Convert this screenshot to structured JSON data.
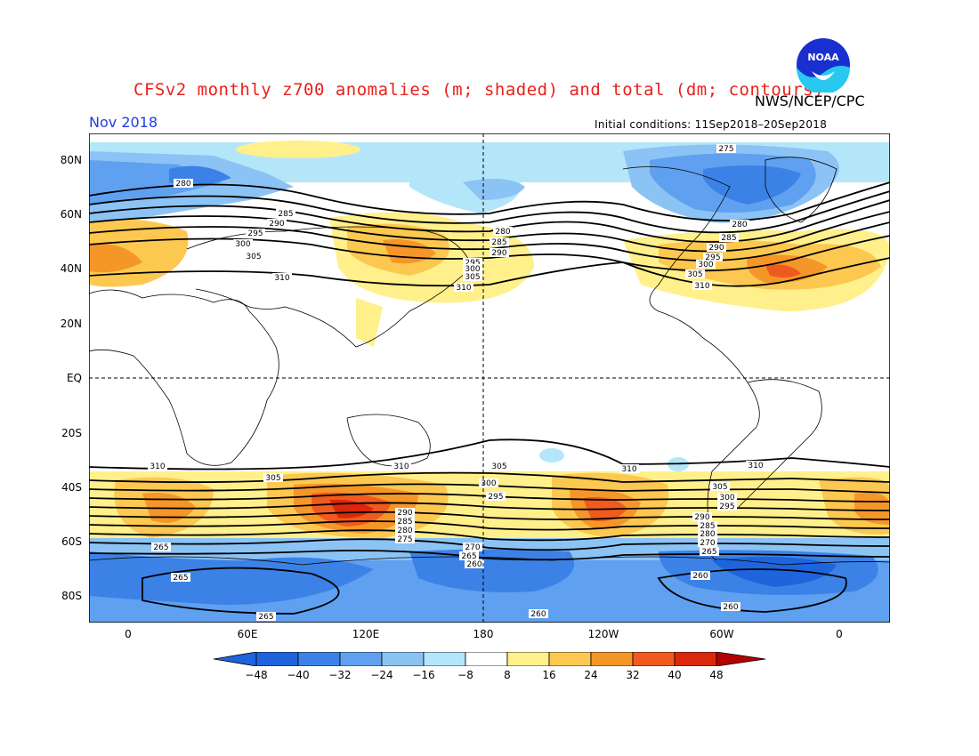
{
  "title": "CFSv2 monthly z700 anomalies (m; shaded) and total (dm; contours)",
  "agency": "NWS/NCEP/CPC",
  "logo_text": "NOAA",
  "month": "Nov 2018",
  "initial_conditions": "Initial conditions: 11Sep2018–20Sep2018",
  "lat_labels": [
    "80N",
    "60N",
    "40N",
    "20N",
    "EQ",
    "20S",
    "40S",
    "60S",
    "80S"
  ],
  "lon_labels": [
    "0",
    "60E",
    "120E",
    "180",
    "120W",
    "60W",
    "0"
  ],
  "colorbar": {
    "labels": [
      "−48",
      "−40",
      "−32",
      "−24",
      "−16",
      "−8",
      "8",
      "16",
      "24",
      "32",
      "40",
      "48"
    ],
    "colors": [
      "#1e64dc",
      "#3c82e6",
      "#5fa0f0",
      "#8cc3f5",
      "#b4e6fa",
      "#ffffff",
      "#fff08c",
      "#fcc850",
      "#f59628",
      "#f05a1e",
      "#dc280a",
      "#b40000"
    ]
  },
  "contour_labels": [
    "310",
    "305",
    "300",
    "295",
    "290",
    "285",
    "280",
    "275",
    "270",
    "265",
    "260"
  ]
}
